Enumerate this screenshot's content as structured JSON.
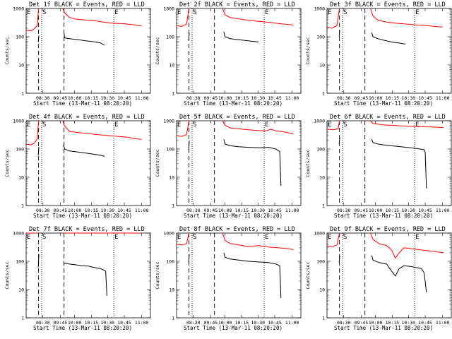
{
  "chart_data": {
    "type": "line",
    "layout": "3x3 grid of panels",
    "y_scale": "log",
    "ylim": [
      1,
      1000
    ],
    "ylabel": "Counts/sec",
    "y_ticks": [
      "1",
      "10",
      "100",
      "1000"
    ],
    "x_ticks": [
      "08:30",
      "09:45",
      "10:00",
      "10:15",
      "10:30",
      "10:45",
      "11:00"
    ],
    "xlabel": "Start Time (13-Mar-11 08:20:20)",
    "markers": [
      "E",
      "S",
      "E"
    ],
    "series_colors": {
      "events": "#000000",
      "lld": "#ff0000"
    },
    "panels": [
      {
        "title": "Det 1f BLACK = Events, RED = LLD",
        "lld": [
          {
            "x": [
              0,
              0.04,
              0.07,
              0.09,
              0.1
            ],
            "y": [
              170,
              160,
              200,
              250,
              1000
            ]
          },
          {
            "x": [
              0.295,
              0.31,
              0.35,
              0.4,
              0.48,
              0.55,
              0.62,
              0.7,
              0.78,
              0.85,
              0.9,
              0.93
            ],
            "y": [
              1000,
              700,
              480,
              420,
              390,
              370,
              330,
              300,
              290,
              270,
              250,
              240
            ]
          }
        ],
        "events": [
          {
            "x": [
              0.098,
              0.102
            ],
            "y": [
              65,
              110
            ]
          },
          {
            "x": [
              0.305,
              0.31,
              0.35,
              0.4,
              0.45,
              0.5,
              0.55,
              0.6,
              0.63
            ],
            "y": [
              130,
              90,
              85,
              80,
              75,
              70,
              66,
              60,
              50
            ]
          }
        ]
      },
      {
        "title": "Det 2f BLACK = Events, RED = LLD",
        "lld": [
          {
            "x": [
              0,
              0.04,
              0.08,
              0.1
            ],
            "y": [
              250,
              230,
              280,
              1000
            ]
          },
          {
            "x": [
              0.37,
              0.39,
              0.43,
              0.5,
              0.58,
              0.66,
              0.75,
              0.83,
              0.9,
              0.94
            ],
            "y": [
              1000,
              600,
              480,
              430,
              380,
              350,
              320,
              290,
              270,
              260
            ]
          }
        ],
        "events": [
          {
            "x": [
              0.098,
              0.102
            ],
            "y": [
              75,
              140
            ]
          },
          {
            "x": [
              0.38,
              0.39,
              0.43,
              0.48,
              0.54,
              0.6,
              0.66
            ],
            "y": [
              150,
              100,
              85,
              80,
              75,
              70,
              65
            ]
          }
        ]
      },
      {
        "title": "Det 3f BLACK = Events, RED = LLD",
        "lld": [
          {
            "x": [
              0,
              0.04,
              0.08,
              0.1
            ],
            "y": [
              220,
              200,
              250,
              1000
            ]
          },
          {
            "x": [
              0.35,
              0.37,
              0.41,
              0.48,
              0.56,
              0.64,
              0.72,
              0.8,
              0.87,
              0.93
            ],
            "y": [
              1000,
              550,
              380,
              330,
              300,
              280,
              260,
              250,
              230,
              220
            ]
          }
        ],
        "events": [
          {
            "x": [
              0.098,
              0.102
            ],
            "y": [
              100,
              170
            ]
          },
          {
            "x": [
              0.36,
              0.37,
              0.41,
              0.46,
              0.52,
              0.58,
              0.63
            ],
            "y": [
              140,
              100,
              85,
              75,
              65,
              60,
              55
            ]
          }
        ]
      },
      {
        "title": "Det 4f BLACK = Events, RED = LLD",
        "lld": [
          {
            "x": [
              0,
              0.04,
              0.07,
              0.09,
              0.1
            ],
            "y": [
              150,
              140,
              170,
              230,
              1000
            ]
          },
          {
            "x": [
              0.295,
              0.31,
              0.35,
              0.42,
              0.5,
              0.58,
              0.66,
              0.74,
              0.82,
              0.88,
              0.93
            ],
            "y": [
              1000,
              650,
              420,
              380,
              350,
              320,
              300,
              280,
              260,
              230,
              220
            ]
          }
        ],
        "events": [
          {
            "x": [
              0.098,
              0.102
            ],
            "y": [
              60,
              120
            ]
          },
          {
            "x": [
              0.3,
              0.31,
              0.35,
              0.4,
              0.45,
              0.5,
              0.55,
              0.6,
              0.63
            ],
            "y": [
              140,
              100,
              85,
              80,
              75,
              70,
              65,
              60,
              55
            ]
          }
        ]
      },
      {
        "title": "Det 5f BLACK = Events, RED = LLD",
        "lld": [
          {
            "x": [
              0,
              0.04,
              0.08,
              0.1
            ],
            "y": [
              300,
              280,
              320,
              1000
            ]
          },
          {
            "x": [
              0.37,
              0.39,
              0.43,
              0.5,
              0.58,
              0.66,
              0.72,
              0.76,
              0.8,
              0.87,
              0.94
            ],
            "y": [
              1000,
              700,
              560,
              520,
              480,
              450,
              440,
              500,
              440,
              400,
              340
            ]
          }
        ],
        "events": [
          {
            "x": [
              0.098,
              0.102
            ],
            "y": [
              90,
              200
            ]
          },
          {
            "x": [
              0.38,
              0.39,
              0.43,
              0.5,
              0.58,
              0.66,
              0.74,
              0.8,
              0.83,
              0.84
            ],
            "y": [
              220,
              150,
              130,
              120,
              115,
              110,
              115,
              100,
              80,
              5
            ]
          }
        ]
      },
      {
        "title": "Det 6f BLACK = Events, RED = LLD",
        "lld": [
          {
            "x": [
              0,
              0.05,
              0.09,
              0.1
            ],
            "y": [
              500,
              480,
              520,
              1000
            ]
          },
          {
            "x": [
              0.35,
              0.37,
              0.45,
              0.55,
              0.65,
              0.75,
              0.85,
              0.94
            ],
            "y": [
              1000,
              800,
              720,
              680,
              640,
              620,
              600,
              580
            ]
          }
        ],
        "events": [
          {
            "x": [
              0.098,
              0.102
            ],
            "y": [
              150,
              260
            ]
          },
          {
            "x": [
              0.36,
              0.37,
              0.41,
              0.48,
              0.56,
              0.64,
              0.72,
              0.78,
              0.79,
              0.8
            ],
            "y": [
              220,
              170,
              150,
              135,
              125,
              115,
              105,
              95,
              80,
              4
            ]
          }
        ]
      },
      {
        "title": "Det 7f BLACK = Events, RED = LLD",
        "lld": [
          {
            "x": [
              0,
              0.05,
              0.09,
              0.1
            ],
            "y": [
              1200,
              1200,
              1200,
              1200
            ]
          },
          {
            "x": [
              0.295,
              0.93
            ],
            "y": [
              1200,
              1200
            ]
          }
        ],
        "events": [
          {
            "x": [
              0.098,
              0.102
            ],
            "y": [
              60,
              180
            ]
          },
          {
            "x": [
              0.3,
              0.31,
              0.35,
              0.4,
              0.45,
              0.5,
              0.55,
              0.6,
              0.62,
              0.64,
              0.65
            ],
            "y": [
              90,
              85,
              80,
              75,
              70,
              68,
              60,
              55,
              50,
              45,
              6
            ]
          }
        ]
      },
      {
        "title": "Det 8f BLACK = Events, RED = LLD",
        "lld": [
          {
            "x": [
              0,
              0.04,
              0.08,
              0.1
            ],
            "y": [
              400,
              380,
              420,
              1000
            ]
          },
          {
            "x": [
              0.37,
              0.39,
              0.43,
              0.5,
              0.58,
              0.66,
              0.74,
              0.82,
              0.9,
              0.94
            ],
            "y": [
              1000,
              550,
              430,
              380,
              330,
              360,
              320,
              300,
              280,
              260
            ]
          }
        ],
        "events": [
          {
            "x": [
              0.098,
              0.102
            ],
            "y": [
              90,
              180
            ]
          },
          {
            "x": [
              0.38,
              0.39,
              0.43,
              0.5,
              0.58,
              0.66,
              0.74,
              0.8,
              0.83,
              0.84
            ],
            "y": [
              200,
              140,
              120,
              110,
              100,
              95,
              90,
              80,
              70,
              5
            ]
          }
        ]
      },
      {
        "title": "Det 9f BLACK = Events, RED = LLD",
        "lld": [
          {
            "x": [
              0,
              0.04,
              0.08,
              0.1
            ],
            "y": [
              350,
              330,
              380,
              1000
            ]
          },
          {
            "x": [
              0.35,
              0.37,
              0.42,
              0.48,
              0.52,
              0.55,
              0.58,
              0.62,
              0.68,
              0.74,
              0.8,
              0.87,
              0.94
            ],
            "y": [
              1000,
              600,
              420,
              360,
              250,
              130,
              200,
              300,
              280,
              260,
              240,
              220,
              200
            ]
          }
        ],
        "events": [
          {
            "x": [
              0.098,
              0.102
            ],
            "y": [
              90,
              160
            ]
          },
          {
            "x": [
              0.36,
              0.37,
              0.42,
              0.48,
              0.52,
              0.55,
              0.58,
              0.62,
              0.68,
              0.72,
              0.76,
              0.78,
              0.79,
              0.8
            ],
            "y": [
              160,
              110,
              90,
              80,
              45,
              30,
              55,
              70,
              65,
              60,
              55,
              40,
              20,
              8
            ]
          }
        ]
      }
    ]
  }
}
